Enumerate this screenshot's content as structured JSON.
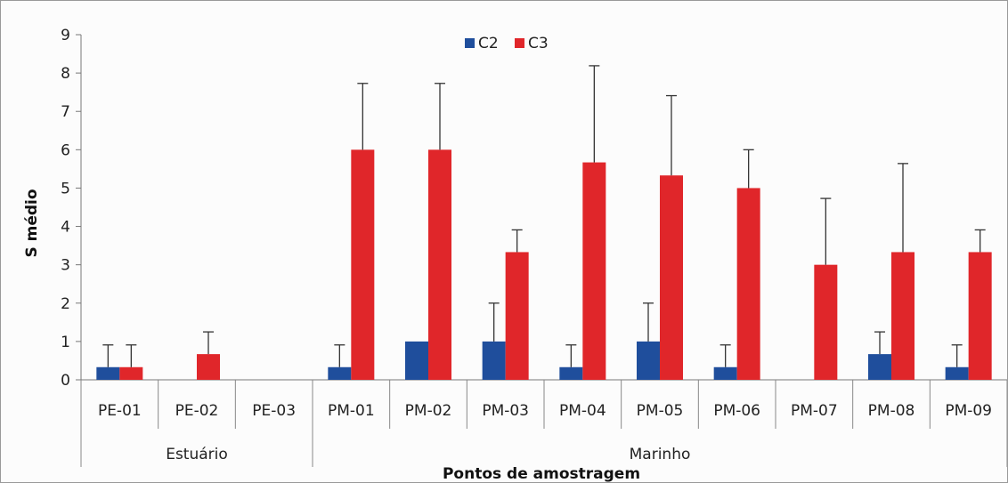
{
  "chart_data": {
    "type": "bar",
    "title": "",
    "xlabel": "Pontos de amostragem",
    "ylabel": "S médio",
    "ylim": [
      0,
      9
    ],
    "yticks": [
      0,
      1,
      2,
      3,
      4,
      5,
      6,
      7,
      8,
      9
    ],
    "grid": false,
    "legend_position": "top-center",
    "categories": [
      "PE-01",
      "PE-02",
      "PE-03",
      "PM-01",
      "PM-02",
      "PM-03",
      "PM-04",
      "PM-05",
      "PM-06",
      "PM-07",
      "PM-08",
      "PM-09"
    ],
    "groups": [
      {
        "label": "Estuário",
        "categories": [
          "PE-01",
          "PE-02",
          "PE-03"
        ]
      },
      {
        "label": "Marinho",
        "categories": [
          "PM-01",
          "PM-02",
          "PM-03",
          "PM-04",
          "PM-05",
          "PM-06",
          "PM-07",
          "PM-08",
          "PM-09"
        ]
      }
    ],
    "series": [
      {
        "name": "C2",
        "color": "#1f4e9c",
        "values": [
          0.33,
          0,
          0,
          0.33,
          1,
          1,
          0.33,
          1,
          0.33,
          0,
          0.67,
          0.33
        ],
        "errors": [
          0.58,
          null,
          null,
          0.58,
          null,
          1.0,
          0.58,
          1.0,
          0.58,
          null,
          0.58,
          0.58
        ]
      },
      {
        "name": "C3",
        "color": "#e0262a",
        "values": [
          0.33,
          0.67,
          0,
          6,
          6,
          3.33,
          5.67,
          5.33,
          5,
          3,
          3.33,
          3.33
        ],
        "errors": [
          0.58,
          0.58,
          null,
          1.73,
          1.73,
          0.58,
          2.52,
          2.08,
          1.0,
          1.73,
          2.31,
          0.58
        ]
      }
    ]
  }
}
